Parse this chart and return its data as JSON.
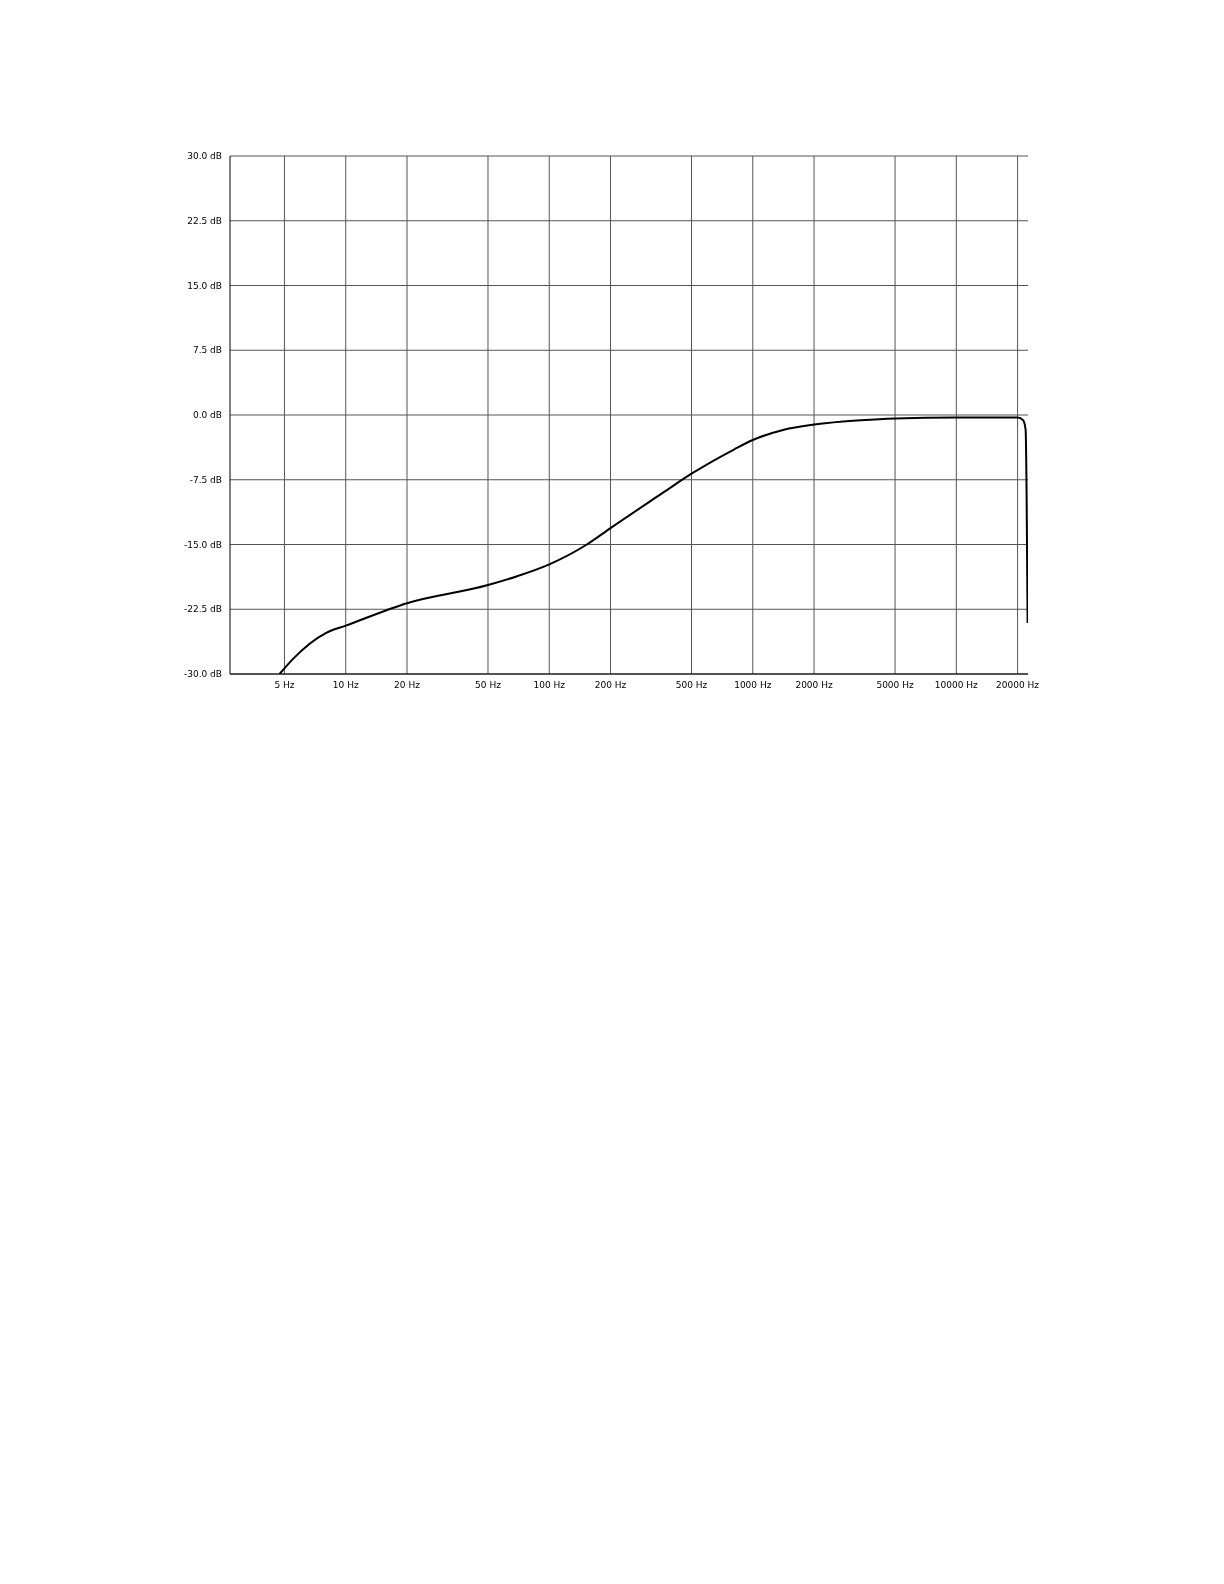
{
  "chart_data": {
    "type": "line",
    "log": "x",
    "grid": true,
    "marker": "none",
    "line_style": "solid",
    "xlim": [
      2.7,
      22500
    ],
    "ylim": [
      -30,
      30
    ],
    "xticks": [
      {
        "value": 5,
        "label": "5 Hz"
      },
      {
        "value": 10,
        "label": "10 Hz"
      },
      {
        "value": 20,
        "label": "20 Hz"
      },
      {
        "value": 50,
        "label": "50 Hz"
      },
      {
        "value": 100,
        "label": "100 Hz"
      },
      {
        "value": 200,
        "label": "200 Hz"
      },
      {
        "value": 500,
        "label": "500 Hz"
      },
      {
        "value": 1000,
        "label": "1000 Hz"
      },
      {
        "value": 2000,
        "label": "2000 Hz"
      },
      {
        "value": 5000,
        "label": "5000 Hz"
      },
      {
        "value": 10000,
        "label": "10000 Hz"
      },
      {
        "value": 20000,
        "label": "20000 Hz"
      }
    ],
    "yticks": [
      {
        "value": -30,
        "label": "-30.0 dB"
      },
      {
        "value": -22.5,
        "label": "-22.5 dB"
      },
      {
        "value": -15,
        "label": "-15.0 dB"
      },
      {
        "value": -7.5,
        "label": "-7.5 dB"
      },
      {
        "value": 0,
        "label": "0.0 dB"
      },
      {
        "value": 7.5,
        "label": "7.5 dB"
      },
      {
        "value": 15,
        "label": "15.0 dB"
      },
      {
        "value": 22.5,
        "label": "22.5 dB"
      },
      {
        "value": 30,
        "label": "30.0 dB"
      }
    ],
    "series": [
      {
        "color": "#000000",
        "x": [
          4.73,
          5.48,
          8.06,
          10,
          20,
          50,
          69,
          100,
          153,
          200,
          352,
          500,
          808,
          1000,
          1423,
          2000,
          3400,
          5000,
          10000,
          20000,
          21300,
          21900,
          22150,
          22400
        ],
        "values": [
          -30,
          -28.3,
          -25.2,
          -24.4,
          -21.8,
          -19.7,
          -18.7,
          -17.3,
          -15,
          -13.1,
          -9.2,
          -6.8,
          -4,
          -2.9,
          -1.7,
          -1.1,
          -0.6,
          -0.4,
          -0.3,
          -0.3,
          -0.6,
          -1.7,
          -9.3,
          -24.1
        ]
      }
    ]
  }
}
